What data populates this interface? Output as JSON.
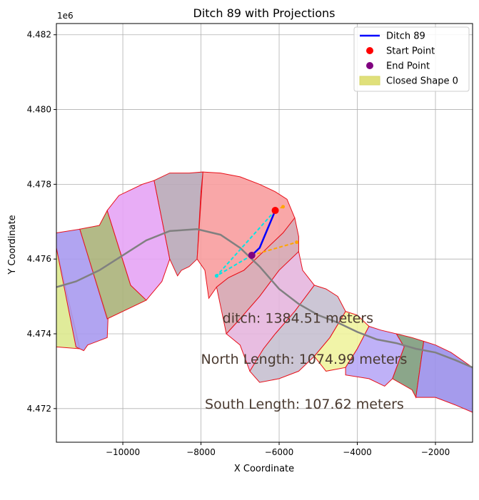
{
  "chart_data": {
    "type": "line",
    "title": "Ditch 89 with Projections",
    "xlabel": "X Coordinate",
    "ylabel": "Y Coordinate",
    "y_offset_label": "1e6",
    "xlim": [
      -11700,
      -1050
    ],
    "ylim": [
      4471100,
      4482300
    ],
    "xticks": [
      -10000,
      -8000,
      -6000,
      -4000,
      -2000
    ],
    "xtick_labels": [
      "−10000",
      "−8000",
      "−6000",
      "−4000",
      "−2000"
    ],
    "yticks": [
      4472000,
      4474000,
      4476000,
      4478000,
      4480000,
      4482000
    ],
    "ytick_labels": [
      "4.472",
      "4.474",
      "4.476",
      "4.478",
      "4.480",
      "4.482"
    ],
    "grid": true,
    "legend_position": "top-right",
    "legend": [
      {
        "label": "Ditch 89",
        "kind": "line",
        "color": "#0000ff"
      },
      {
        "label": "Start Point",
        "kind": "marker",
        "color": "#ff0000"
      },
      {
        "label": "End Point",
        "kind": "marker",
        "color": "#800080"
      },
      {
        "label": "Closed Shape 0",
        "kind": "patch",
        "color": "#e0e07a"
      }
    ],
    "shapes": [
      {
        "color": "#dde98f",
        "points": [
          [
            -11700,
            4476300
          ],
          [
            -11100,
            4473600
          ],
          [
            -11700,
            4473650
          ]
        ]
      },
      {
        "color": "#a99af0",
        "points": [
          [
            -11700,
            4476700
          ],
          [
            -11100,
            4476800
          ],
          [
            -10380,
            4474400
          ],
          [
            -10400,
            4473900
          ],
          [
            -10900,
            4473700
          ],
          [
            -11000,
            4473550
          ],
          [
            -11200,
            4473650
          ],
          [
            -11700,
            4476300
          ]
        ]
      },
      {
        "color": "#abb27a",
        "points": [
          [
            -11100,
            4476800
          ],
          [
            -10600,
            4476900
          ],
          [
            -10400,
            4477300
          ],
          [
            -9800,
            4475300
          ],
          [
            -9400,
            4474900
          ],
          [
            -10400,
            4474400
          ]
        ]
      },
      {
        "color": "#e5a4f5",
        "points": [
          [
            -10400,
            4477300
          ],
          [
            -10100,
            4477700
          ],
          [
            -9500,
            4478000
          ],
          [
            -9200,
            4478100
          ],
          [
            -8800,
            4476000
          ],
          [
            -9000,
            4475400
          ],
          [
            -9400,
            4474900
          ],
          [
            -9800,
            4475300
          ]
        ]
      },
      {
        "color": "#b9a9b8",
        "points": [
          [
            -9200,
            4478100
          ],
          [
            -8800,
            4478300
          ],
          [
            -8500,
            4478300
          ],
          [
            -8300,
            4478300
          ],
          [
            -7950,
            4478330
          ],
          [
            -8000,
            4477800
          ],
          [
            -8100,
            4476000
          ],
          [
            -8300,
            4475800
          ],
          [
            -8500,
            4475700
          ],
          [
            -8600,
            4475550
          ],
          [
            -8800,
            4476000
          ]
        ]
      },
      {
        "color": "#f89d9e",
        "points": [
          [
            -7950,
            4478330
          ],
          [
            -7500,
            4478300
          ],
          [
            -7000,
            4478200
          ],
          [
            -6500,
            4478000
          ],
          [
            -6100,
            4477800
          ],
          [
            -5800,
            4477600
          ],
          [
            -5600,
            4477100
          ],
          [
            -5900,
            4476700
          ],
          [
            -6400,
            4476200
          ],
          [
            -6900,
            4475700
          ],
          [
            -7300,
            4475500
          ],
          [
            -7600,
            4475250
          ],
          [
            -7800,
            4474950
          ],
          [
            -7900,
            4475700
          ],
          [
            -8100,
            4476000
          ]
        ]
      },
      {
        "color": "#d6a5b0",
        "points": [
          [
            -5600,
            4477100
          ],
          [
            -5500,
            4476600
          ],
          [
            -5500,
            4476200
          ],
          [
            -6000,
            4475700
          ],
          [
            -6500,
            4475000
          ],
          [
            -7000,
            4474400
          ],
          [
            -7350,
            4474000
          ],
          [
            -7600,
            4475250
          ],
          [
            -7300,
            4475500
          ],
          [
            -6900,
            4475700
          ],
          [
            -6400,
            4476200
          ],
          [
            -5900,
            4476700
          ]
        ]
      },
      {
        "color": "#e6b6de",
        "points": [
          [
            -5500,
            4476200
          ],
          [
            -5400,
            4475700
          ],
          [
            -5100,
            4475300
          ],
          [
            -5600,
            4474600
          ],
          [
            -6100,
            4474000
          ],
          [
            -6400,
            4473600
          ],
          [
            -6750,
            4473000
          ],
          [
            -7000,
            4473700
          ],
          [
            -7350,
            4474000
          ],
          [
            -7000,
            4474400
          ],
          [
            -6500,
            4475000
          ],
          [
            -6000,
            4475700
          ]
        ]
      },
      {
        "color": "#c6c0d0",
        "points": [
          [
            -5100,
            4475300
          ],
          [
            -4800,
            4475200
          ],
          [
            -4500,
            4475000
          ],
          [
            -4300,
            4474600
          ],
          [
            -4700,
            4473900
          ],
          [
            -5100,
            4473400
          ],
          [
            -5500,
            4473000
          ],
          [
            -6000,
            4472800
          ],
          [
            -6500,
            4472700
          ],
          [
            -6750,
            4473000
          ],
          [
            -6400,
            4473600
          ],
          [
            -6100,
            4474000
          ],
          [
            -5600,
            4474600
          ]
        ]
      },
      {
        "color": "#f0f39e",
        "points": [
          [
            -4300,
            4474600
          ],
          [
            -4000,
            4474500
          ],
          [
            -3700,
            4474200
          ],
          [
            -4000,
            4473600
          ],
          [
            -4300,
            4473100
          ],
          [
            -4800,
            4473000
          ],
          [
            -5100,
            4473400
          ],
          [
            -4700,
            4473900
          ]
        ]
      },
      {
        "color": "#b8a8f6",
        "points": [
          [
            -3700,
            4474200
          ],
          [
            -3400,
            4474100
          ],
          [
            -3000,
            4474000
          ],
          [
            -2800,
            4473650
          ],
          [
            -3100,
            4472800
          ],
          [
            -3300,
            4472600
          ],
          [
            -3700,
            4472800
          ],
          [
            -4300,
            4472900
          ],
          [
            -4300,
            4473100
          ],
          [
            -4000,
            4473600
          ]
        ]
      },
      {
        "color": "#7e9c7d",
        "points": [
          [
            -3000,
            4474000
          ],
          [
            -2600,
            4473900
          ],
          [
            -2300,
            4473800
          ],
          [
            -2500,
            4472300
          ],
          [
            -2600,
            4472500
          ],
          [
            -3100,
            4472800
          ],
          [
            -2800,
            4473650
          ]
        ]
      },
      {
        "color": "#9b90ea",
        "points": [
          [
            -2300,
            4473800
          ],
          [
            -2000,
            4473700
          ],
          [
            -1600,
            4473500
          ],
          [
            -1050,
            4473100
          ],
          [
            -1050,
            4471900
          ],
          [
            -1500,
            4472100
          ],
          [
            -2000,
            4472300
          ],
          [
            -2500,
            4472300
          ]
        ]
      }
    ],
    "centerline": [
      [
        -11700,
        4475250
      ],
      [
        -11200,
        4475400
      ],
      [
        -10600,
        4475700
      ],
      [
        -10000,
        4476100
      ],
      [
        -9400,
        4476500
      ],
      [
        -8800,
        4476750
      ],
      [
        -8100,
        4476800
      ],
      [
        -7500,
        4476650
      ],
      [
        -7000,
        4476300
      ],
      [
        -6500,
        4475800
      ],
      [
        -6000,
        4475200
      ],
      [
        -5500,
        4474800
      ],
      [
        -5000,
        4474500
      ],
      [
        -4500,
        4474300
      ],
      [
        -4000,
        4474050
      ],
      [
        -3500,
        4473850
      ],
      [
        -3000,
        4473750
      ],
      [
        -2500,
        4473600
      ],
      [
        -2000,
        4473500
      ],
      [
        -1500,
        4473300
      ],
      [
        -1050,
        4473100
      ]
    ],
    "ditch": [
      [
        -6100,
        4477300
      ],
      [
        -6500,
        4476300
      ],
      [
        -6700,
        4476100
      ]
    ],
    "start_point": [
      -6100,
      4477300
    ],
    "end_point": [
      -6700,
      4476100
    ],
    "projections": [
      {
        "color": "#00e5e5",
        "points": [
          [
            -6100,
            4477300
          ],
          [
            -7600,
            4475550
          ]
        ]
      },
      {
        "color": "#00e5e5",
        "points": [
          [
            -6700,
            4476100
          ],
          [
            -7600,
            4475550
          ]
        ]
      },
      {
        "color": "#ffa500",
        "points": [
          [
            -6100,
            4477300
          ],
          [
            -5900,
            4477400
          ]
        ]
      },
      {
        "color": "#ffa500",
        "points": [
          [
            -6700,
            4476100
          ],
          [
            -5550,
            4476450
          ]
        ]
      }
    ],
    "annotations": [
      {
        "text": "ditch: 1384.51 meters",
        "x": -7450,
        "y": 4474300
      },
      {
        "text": "North Length: 1074.99 meters",
        "x": -8000,
        "y": 4473200
      },
      {
        "text": "South Length: 107.62 meters",
        "x": -7900,
        "y": 4472000
      }
    ]
  }
}
